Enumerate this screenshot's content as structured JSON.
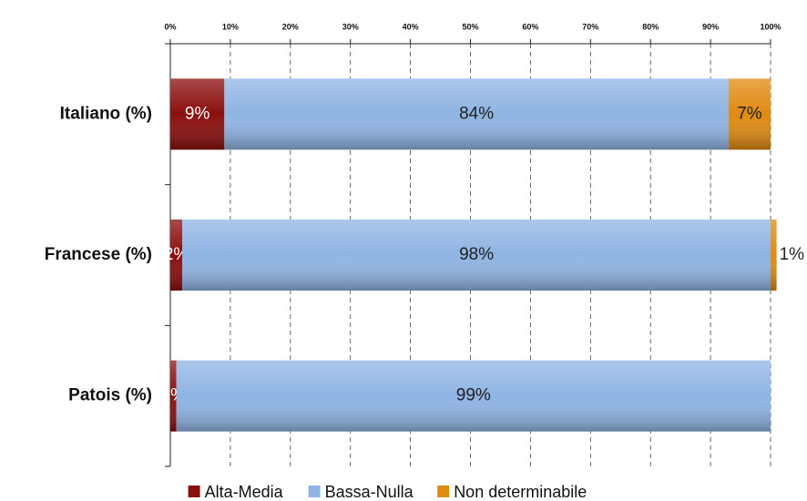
{
  "chart_data": {
    "type": "stacked_barh",
    "categories": [
      "Italiano (%)",
      "Francese (%)",
      "Patois (%)"
    ],
    "series": [
      {
        "name": "Alta-Media",
        "color": "#8b0e0e",
        "values": [
          9,
          2,
          1
        ],
        "value_labels": [
          "9%",
          "2%",
          "1%"
        ]
      },
      {
        "name": "Bassa-Nulla",
        "color": "#8fb4e3",
        "values": [
          84,
          98,
          99
        ],
        "value_labels": [
          "84%",
          "98%",
          "99%"
        ]
      },
      {
        "name": "Non determinabile",
        "color": "#e08a10",
        "values": [
          7,
          1,
          0
        ],
        "value_labels": [
          "7%",
          "1%",
          null
        ]
      }
    ],
    "xlim": [
      0,
      100
    ],
    "xticks": [
      {
        "value": 0,
        "label": "0%"
      },
      {
        "value": 10,
        "label": "10%"
      },
      {
        "value": 20,
        "label": "20%"
      },
      {
        "value": 30,
        "label": "30%"
      },
      {
        "value": 40,
        "label": "40%"
      },
      {
        "value": 50,
        "label": "50%"
      },
      {
        "value": 60,
        "label": "60%"
      },
      {
        "value": 70,
        "label": "70%"
      },
      {
        "value": 80,
        "label": "80%"
      },
      {
        "value": 90,
        "label": "90%"
      },
      {
        "value": 100,
        "label": "100%"
      }
    ],
    "grid": true,
    "legend": "bottom"
  }
}
